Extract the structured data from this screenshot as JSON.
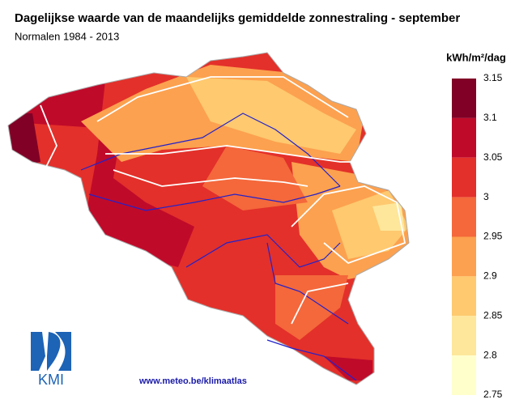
{
  "header": {
    "title": "Dagelijkse waarde van de maandelijks gemiddelde zonnestraling - september",
    "subtitle": "Normalen 1984 - 2013"
  },
  "legend": {
    "unit": "kWh/m²/dag",
    "ticks": [
      3.15,
      3.1,
      3.05,
      3,
      2.95,
      2.9,
      2.85,
      2.8,
      2.75
    ],
    "colors": [
      "#800026",
      "#c00a2a",
      "#e3302a",
      "#f4683b",
      "#fca14f",
      "#fec96f",
      "#fee79b",
      "#ffffcc"
    ]
  },
  "footer": {
    "url": "www.meteo.be/klimaatlas",
    "logo": "KMI"
  }
}
